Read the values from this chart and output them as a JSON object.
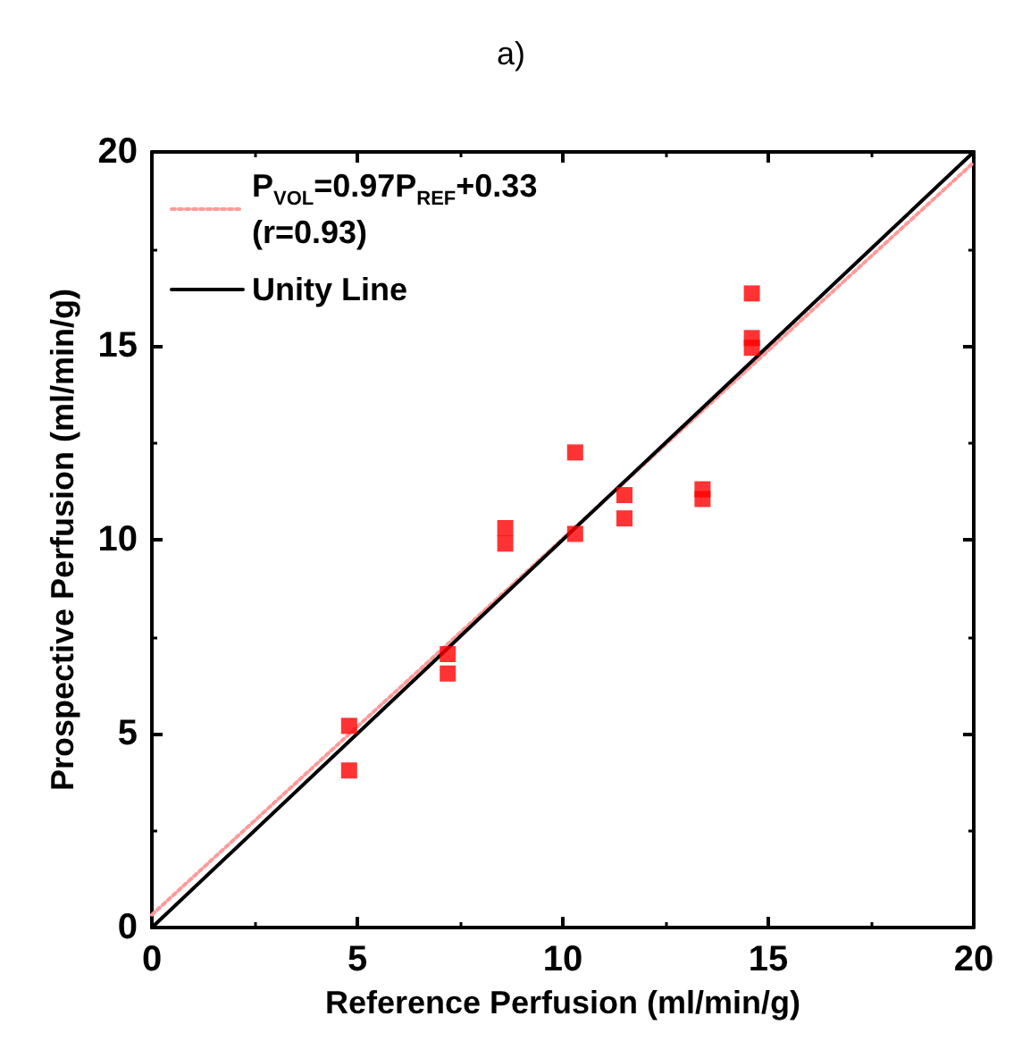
{
  "chart_data": {
    "type": "scatter",
    "title": "a)",
    "xlabel": "Reference Perfusion (ml/min/g)",
    "ylabel": "Prospective Perfusion (ml/min/g)",
    "xlim": [
      0,
      20
    ],
    "ylim": [
      0,
      20
    ],
    "xticks": [
      0,
      5,
      10,
      15,
      20
    ],
    "yticks": [
      0,
      5,
      10,
      15,
      20
    ],
    "grid": false,
    "legend": "top left",
    "series": [
      {
        "type": "scatter",
        "marker": "square",
        "color": "#ff0000",
        "x": [
          4.8,
          4.8,
          7.2,
          7.2,
          8.6,
          8.6,
          10.3,
          10.3,
          11.5,
          11.5,
          13.4,
          13.4,
          14.6,
          14.6,
          14.6
        ],
        "values": [
          5.2,
          4.05,
          7.05,
          6.55,
          10.3,
          9.9,
          12.25,
          10.15,
          11.15,
          10.55,
          11.3,
          11.05,
          16.35,
          15.2,
          14.95
        ]
      },
      {
        "type": "line",
        "name": "P$_{VOL}$=0.97P$_{REF}$+0.33\n(r=0.93)",
        "color": "#ff9999",
        "line_style": "dotted",
        "x": [
          0,
          20
        ],
        "values": [
          0.33,
          19.73
        ]
      },
      {
        "type": "line",
        "name": "Unity Line",
        "color": "#000000",
        "line_style": "solid",
        "x": [
          0,
          20
        ],
        "values": [
          0,
          20
        ]
      }
    ]
  }
}
